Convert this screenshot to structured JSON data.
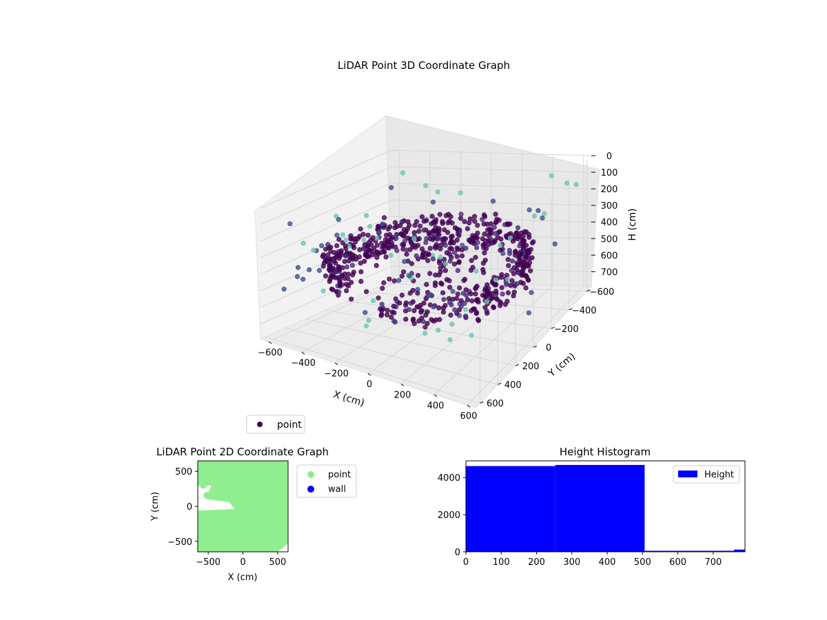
{
  "colors": {
    "point_3d_dark": "#440154",
    "point_3d_mid": "#3b528b",
    "point_3d_light": "#5ec962",
    "point_2d": "#90ee90",
    "wall_2d": "#0000ff",
    "histogram_bar": "#0000ff",
    "pane_face": "#f2f2f2",
    "grid_line": "#d0d0d0"
  },
  "chart_data": [
    {
      "type": "scatter",
      "title": "LiDAR Point 3D Coordinate Graph",
      "xlabel": "X (cm)",
      "ylabel": "Y (cm)",
      "zlabel": "H (cm)",
      "x_ticks": [
        "−600",
        "−400",
        "−200",
        "0",
        "200",
        "400",
        "600"
      ],
      "y_ticks": [
        "−600",
        "−400",
        "−200",
        "0",
        "200",
        "400",
        "600"
      ],
      "z_ticks": [
        "0",
        "100",
        "200",
        "300",
        "400",
        "500",
        "600",
        "700"
      ],
      "xlim": [
        -650,
        650
      ],
      "ylim": [
        -650,
        650
      ],
      "zlim": [
        0,
        790
      ],
      "z_axis_inverted": true,
      "grid": true,
      "legend": {
        "entries": [
          "point"
        ],
        "position": "bottom-left"
      },
      "series": [
        {
          "name": "point",
          "description_kind": "ring_of_points",
          "ring_radius": 560,
          "height_range": [
            320,
            500
          ],
          "approx_count": 9300
        }
      ]
    },
    {
      "type": "scatter",
      "title": "LiDAR Point 2D Coordinate Graph",
      "xlabel": "X (cm)",
      "ylabel": "Y (cm)",
      "x_ticks": [
        "−500",
        "0",
        "500"
      ],
      "y_ticks": [
        "−500",
        "0",
        "500"
      ],
      "xlim": [
        -650,
        650
      ],
      "ylim": [
        -650,
        650
      ],
      "grid": false,
      "legend": {
        "entries": [
          "point",
          "wall"
        ],
        "position": "outside-right"
      },
      "series": [
        {
          "name": "point",
          "region": "dense_disk",
          "approx_radius": 650
        },
        {
          "name": "wall",
          "values": []
        }
      ]
    },
    {
      "type": "bar",
      "title": "Height Histogram",
      "xlabel": "",
      "ylabel": "",
      "x_ticks": [
        "0",
        "100",
        "200",
        "300",
        "400",
        "500",
        "600",
        "700"
      ],
      "y_ticks": [
        "0",
        "2000",
        "4000"
      ],
      "xlim": [
        0,
        790
      ],
      "ylim": [
        0,
        4900
      ],
      "legend": {
        "entries": [
          "Height"
        ],
        "position": "top-right"
      },
      "bins": [
        {
          "start": 0,
          "end": 253,
          "count": 4620
        },
        {
          "start": 253,
          "end": 506,
          "count": 4680
        },
        {
          "start": 506,
          "end": 759,
          "count": 55
        },
        {
          "start": 759,
          "end": 790,
          "count": 120
        }
      ]
    }
  ]
}
